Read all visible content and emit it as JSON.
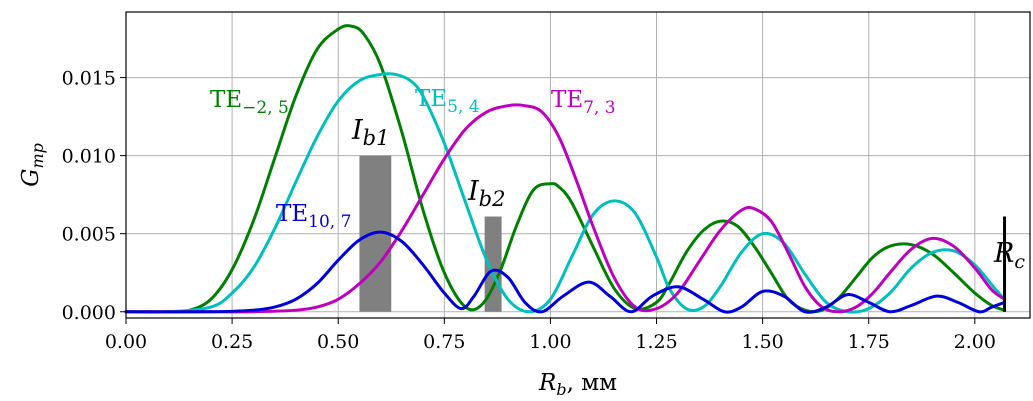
{
  "chart_data": {
    "type": "line",
    "xlabel_main": "R",
    "xlabel_sub": "b",
    "xlabel_unit": ", мм",
    "ylabel_main": "G",
    "ylabel_sub": "mp",
    "xlim": [
      0,
      2.13
    ],
    "ylim": [
      -0.0004,
      0.0192
    ],
    "xticks": [
      0.0,
      0.25,
      0.5,
      0.75,
      1.0,
      1.25,
      1.5,
      1.75,
      2.0
    ],
    "xtick_labels": [
      "0.00",
      "0.25",
      "0.50",
      "0.75",
      "1.00",
      "1.25",
      "1.50",
      "1.75",
      "2.00"
    ],
    "yticks": [
      0.0,
      0.005,
      0.01,
      0.015
    ],
    "ytick_labels": [
      "0.000",
      "0.005",
      "0.010",
      "0.015"
    ],
    "grid": true,
    "series": [
      {
        "name": "TE−2,5",
        "label_main": "TE",
        "label_sub": "−2, 5",
        "color": "#008000",
        "x": [
          0,
          0.1,
          0.15,
          0.2,
          0.25,
          0.3,
          0.35,
          0.4,
          0.45,
          0.5,
          0.53,
          0.56,
          0.6,
          0.65,
          0.7,
          0.75,
          0.8,
          0.84,
          0.88,
          0.92,
          0.96,
          1.0,
          1.02,
          1.05,
          1.1,
          1.15,
          1.2,
          1.25,
          1.28,
          1.32,
          1.36,
          1.4,
          1.44,
          1.48,
          1.52,
          1.56,
          1.6,
          1.64,
          1.68,
          1.72,
          1.76,
          1.8,
          1.85,
          1.9,
          1.95,
          2.0,
          2.04,
          2.07
        ],
        "y": [
          0,
          0,
          0.0001,
          0.0008,
          0.0027,
          0.0058,
          0.0098,
          0.0138,
          0.0168,
          0.0181,
          0.0183,
          0.0178,
          0.0158,
          0.0115,
          0.0065,
          0.0025,
          0.0003,
          0.0005,
          0.0025,
          0.0055,
          0.0078,
          0.0082,
          0.008,
          0.007,
          0.0042,
          0.0015,
          0.0002,
          0.0006,
          0.0018,
          0.0038,
          0.0052,
          0.0058,
          0.0055,
          0.0042,
          0.0025,
          0.0008,
          0.0001,
          0.0001,
          0.0009,
          0.0022,
          0.0035,
          0.0042,
          0.0043,
          0.0037,
          0.0025,
          0.0012,
          0.0004,
          0.0001
        ]
      },
      {
        "name": "TE5,4",
        "label_main": "TE",
        "label_sub": "5, 4",
        "color": "#00bfbf",
        "x": [
          0,
          0.1,
          0.2,
          0.25,
          0.3,
          0.35,
          0.4,
          0.45,
          0.5,
          0.55,
          0.6,
          0.635,
          0.67,
          0.7,
          0.75,
          0.8,
          0.85,
          0.9,
          0.95,
          1.0,
          1.05,
          1.1,
          1.15,
          1.2,
          1.25,
          1.28,
          1.32,
          1.36,
          1.4,
          1.45,
          1.5,
          1.55,
          1.6,
          1.65,
          1.7,
          1.75,
          1.8,
          1.85,
          1.9,
          1.95,
          2.0,
          2.05,
          2.07
        ],
        "y": [
          0,
          0,
          0.0003,
          0.0012,
          0.0028,
          0.0053,
          0.0083,
          0.0112,
          0.0135,
          0.0148,
          0.0152,
          0.0152,
          0.0148,
          0.0138,
          0.0108,
          0.007,
          0.0033,
          0.0008,
          0.0,
          0.0008,
          0.0035,
          0.0062,
          0.0071,
          0.0063,
          0.0035,
          0.0015,
          0.0002,
          0.0003,
          0.0016,
          0.0038,
          0.005,
          0.0044,
          0.0024,
          0.0006,
          0.0,
          0.0002,
          0.0012,
          0.0028,
          0.0038,
          0.0039,
          0.003,
          0.0014,
          0.0008
        ]
      },
      {
        "name": "TE7,3",
        "label_main": "TE",
        "label_sub": "7, 3",
        "color": "#bf00bf",
        "x": [
          0,
          0.2,
          0.3,
          0.4,
          0.45,
          0.5,
          0.55,
          0.6,
          0.65,
          0.7,
          0.75,
          0.8,
          0.85,
          0.9,
          0.94,
          0.98,
          1.02,
          1.06,
          1.1,
          1.15,
          1.2,
          1.25,
          1.3,
          1.35,
          1.4,
          1.45,
          1.48,
          1.52,
          1.56,
          1.6,
          1.64,
          1.68,
          1.72,
          1.76,
          1.8,
          1.85,
          1.9,
          1.95,
          2.0,
          2.04,
          2.07
        ],
        "y": [
          0,
          0,
          0,
          0.0001,
          0.0003,
          0.0008,
          0.0018,
          0.0032,
          0.0052,
          0.0075,
          0.0098,
          0.0117,
          0.0128,
          0.0132,
          0.0132,
          0.0128,
          0.0112,
          0.0085,
          0.0055,
          0.0022,
          0.0003,
          0.0002,
          0.0012,
          0.0032,
          0.0052,
          0.0065,
          0.0066,
          0.0058,
          0.0038,
          0.0016,
          0.0003,
          0.0,
          0.0003,
          0.0012,
          0.0025,
          0.004,
          0.0047,
          0.0042,
          0.0028,
          0.0014,
          0.0008
        ]
      },
      {
        "name": "TE10,7",
        "label_main": "TE",
        "label_sub": "10, 7",
        "color": "#0000dd",
        "x": [
          0,
          0.2,
          0.3,
          0.35,
          0.4,
          0.45,
          0.5,
          0.55,
          0.6,
          0.65,
          0.7,
          0.75,
          0.79,
          0.82,
          0.86,
          0.9,
          0.94,
          0.98,
          1.03,
          1.09,
          1.14,
          1.19,
          1.24,
          1.3,
          1.36,
          1.41,
          1.45,
          1.5,
          1.55,
          1.6,
          1.65,
          1.7,
          1.75,
          1.8,
          1.85,
          1.91,
          1.96,
          2.01,
          2.04,
          2.07
        ],
        "y": [
          0,
          0,
          0.0001,
          0.0003,
          0.0008,
          0.0018,
          0.0033,
          0.0046,
          0.0051,
          0.0045,
          0.003,
          0.0012,
          0.0002,
          0.001,
          0.0026,
          0.0022,
          0.0006,
          0.0,
          0.001,
          0.0019,
          0.001,
          0.0,
          0.001,
          0.0016,
          0.0008,
          0.0,
          0.0003,
          0.0013,
          0.001,
          0.0,
          0.0003,
          0.0011,
          0.0006,
          0.0,
          0.0004,
          0.001,
          0.0006,
          0.0,
          0.0003,
          0.0006
        ]
      }
    ],
    "bars": [
      {
        "label_main": "I",
        "label_sub": "b1",
        "x_left": 0.55,
        "x_right": 0.625,
        "y": 0.01,
        "color": "#808080"
      },
      {
        "label_main": "I",
        "label_sub": "b2",
        "x_left": 0.845,
        "x_right": 0.885,
        "y": 0.0061,
        "color": "#808080"
      }
    ],
    "rc_marker": {
      "label_main": "R",
      "label_sub": "c",
      "x": 2.07,
      "y_top": 0.0061,
      "color": "#000000"
    }
  }
}
